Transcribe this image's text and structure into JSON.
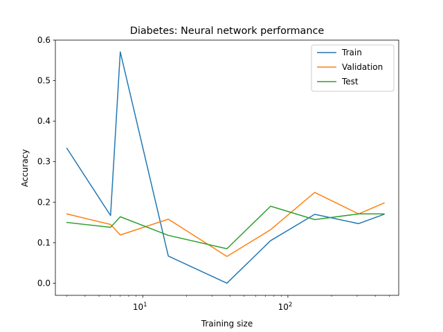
{
  "chart_data": {
    "type": "line",
    "title": "Diabetes: Neural network performance",
    "xlabel": "Training size",
    "ylabel": "Accuracy",
    "xscale": "log",
    "xlim": [
      2.5,
      580
    ],
    "ylim": [
      -0.03,
      0.6
    ],
    "yticks": [
      0.0,
      0.1,
      0.2,
      0.3,
      0.4,
      0.5,
      0.6
    ],
    "ytick_labels": [
      "0.0",
      "0.1",
      "0.2",
      "0.3",
      "0.4",
      "0.5",
      "0.6"
    ],
    "xticks_major": [
      10,
      100
    ],
    "xtick_labels": [
      {
        "base": "10",
        "exp": "1"
      },
      {
        "base": "10",
        "exp": "2"
      }
    ],
    "x": [
      3,
      6,
      7,
      15,
      38,
      76,
      153,
      307,
      460
    ],
    "series": [
      {
        "name": "Train",
        "color": "#1f77b4",
        "values": [
          0.333,
          0.167,
          0.571,
          0.067,
          0.0,
          0.105,
          0.17,
          0.147,
          0.17
        ]
      },
      {
        "name": "Validation",
        "color": "#ff7f0e",
        "values": [
          0.171,
          0.145,
          0.119,
          0.158,
          0.066,
          0.132,
          0.224,
          0.171,
          0.198
        ]
      },
      {
        "name": "Test",
        "color": "#2ca02c",
        "values": [
          0.15,
          0.138,
          0.164,
          0.118,
          0.085,
          0.19,
          0.157,
          0.171,
          0.171
        ]
      }
    ],
    "legend": {
      "position": "top-right"
    },
    "grid": false
  }
}
